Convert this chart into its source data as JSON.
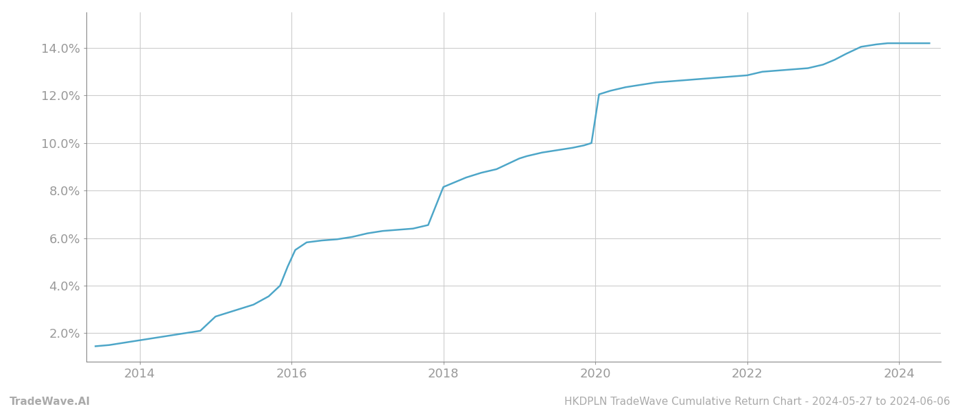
{
  "x_values": [
    2013.42,
    2013.6,
    2013.8,
    2014.0,
    2014.2,
    2014.5,
    2014.8,
    2015.0,
    2015.15,
    2015.3,
    2015.5,
    2015.7,
    2015.85,
    2015.95,
    2016.05,
    2016.2,
    2016.4,
    2016.6,
    2016.8,
    2017.0,
    2017.2,
    2017.4,
    2017.6,
    2017.8,
    2018.0,
    2018.15,
    2018.3,
    2018.5,
    2018.7,
    2018.9,
    2019.0,
    2019.1,
    2019.3,
    2019.5,
    2019.7,
    2019.85,
    2019.95,
    2020.05,
    2020.2,
    2020.4,
    2020.6,
    2020.8,
    2021.0,
    2021.2,
    2021.4,
    2021.6,
    2021.8,
    2022.0,
    2022.2,
    2022.4,
    2022.6,
    2022.8,
    2023.0,
    2023.15,
    2023.3,
    2023.5,
    2023.7,
    2023.85,
    2024.0,
    2024.2,
    2024.4
  ],
  "y_values": [
    1.45,
    1.5,
    1.6,
    1.7,
    1.8,
    1.95,
    2.1,
    2.7,
    2.85,
    3.0,
    3.2,
    3.55,
    4.0,
    4.8,
    5.5,
    5.82,
    5.9,
    5.95,
    6.05,
    6.2,
    6.3,
    6.35,
    6.4,
    6.55,
    8.15,
    8.35,
    8.55,
    8.75,
    8.9,
    9.2,
    9.35,
    9.45,
    9.6,
    9.7,
    9.8,
    9.9,
    10.0,
    12.05,
    12.2,
    12.35,
    12.45,
    12.55,
    12.6,
    12.65,
    12.7,
    12.75,
    12.8,
    12.85,
    13.0,
    13.05,
    13.1,
    13.15,
    13.3,
    13.5,
    13.75,
    14.05,
    14.15,
    14.2,
    14.2,
    14.2,
    14.2
  ],
  "line_color": "#4da6c8",
  "line_width": 1.8,
  "background_color": "#ffffff",
  "grid_color": "#cccccc",
  "tick_label_color": "#999999",
  "xlim": [
    2013.3,
    2024.55
  ],
  "ylim": [
    0.8,
    15.5
  ],
  "yticks": [
    2.0,
    4.0,
    6.0,
    8.0,
    10.0,
    12.0,
    14.0
  ],
  "xticks": [
    2014,
    2016,
    2018,
    2020,
    2022,
    2024
  ],
  "footer_left": "TradeWave.AI",
  "footer_right": "HKDPLN TradeWave Cumulative Return Chart - 2024-05-27 to 2024-06-06",
  "footer_color": "#aaaaaa",
  "footer_fontsize": 11,
  "tick_fontsize": 13,
  "left_spine_color": "#888888"
}
